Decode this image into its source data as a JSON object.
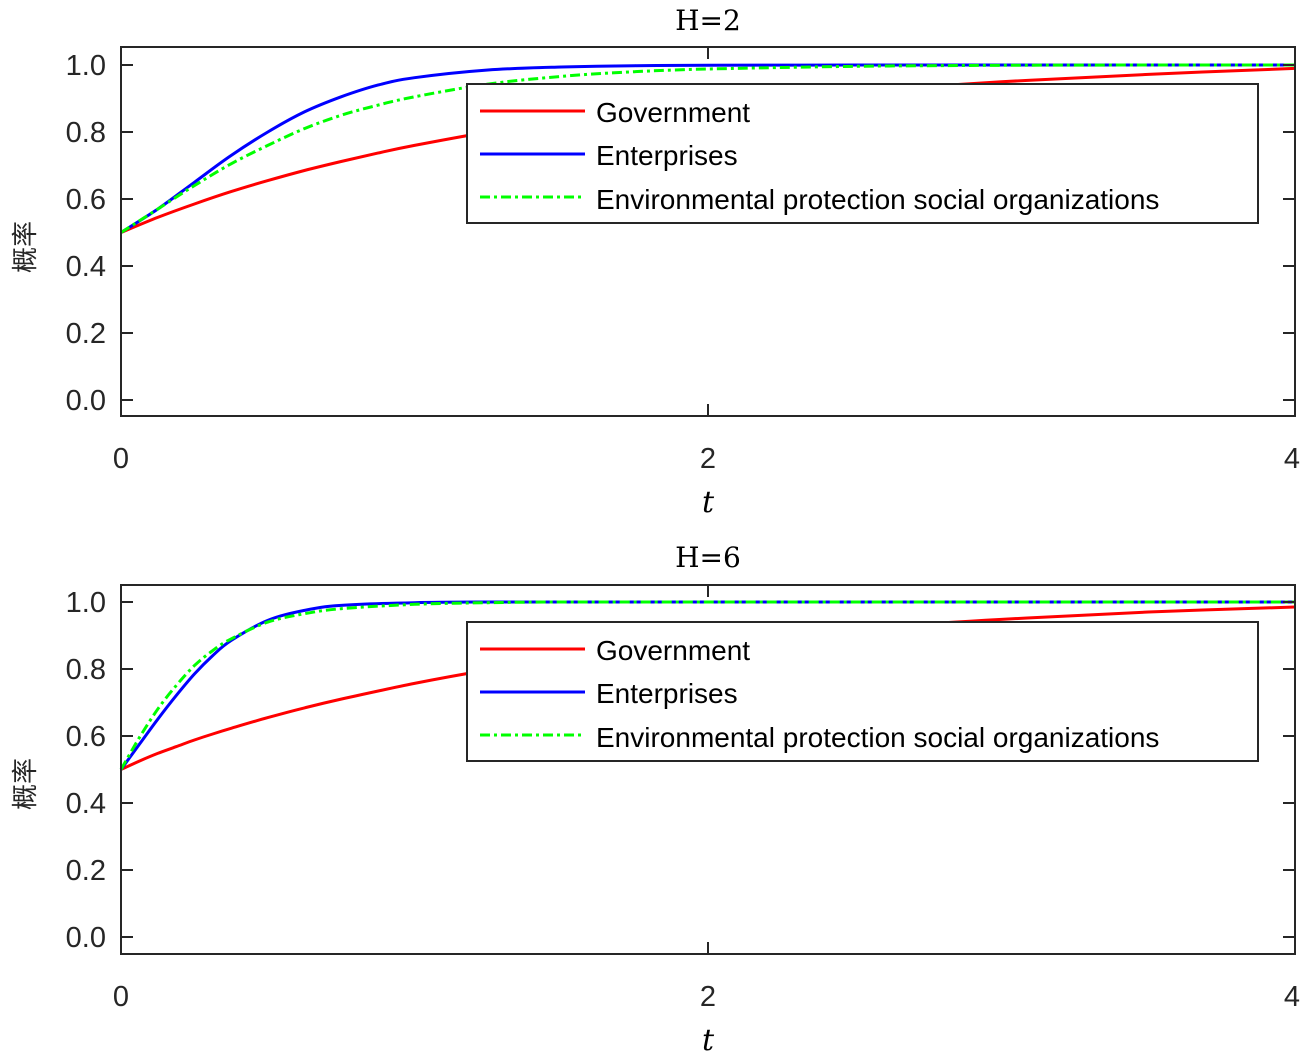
{
  "chart_data": [
    {
      "type": "line",
      "title": "H=2",
      "xlabel": "t",
      "ylabel": "概率",
      "xlim": [
        0,
        4
      ],
      "ylim": [
        -0.05,
        1.05
      ],
      "xticks": [
        "0",
        "2",
        "4"
      ],
      "yticks": [
        "0.0",
        "0.2",
        "0.4",
        "0.6",
        "0.8",
        "1.0"
      ],
      "grid": false,
      "legend_position": "upper right (inside)",
      "x": [
        0,
        0.125,
        0.25,
        0.375,
        0.5,
        0.625,
        0.75,
        0.875,
        1.0,
        1.25,
        1.5,
        1.75,
        2.0,
        2.5,
        3.0,
        3.5,
        4.0
      ],
      "series": [
        {
          "name": "Government",
          "color": "#ff0000",
          "style": "solid",
          "values": [
            0.5,
            0.545,
            0.585,
            0.622,
            0.655,
            0.685,
            0.712,
            0.737,
            0.76,
            0.8,
            0.835,
            0.863,
            0.887,
            0.922,
            0.95,
            0.972,
            0.99
          ]
        },
        {
          "name": "Enterprises",
          "color": "#0000ff",
          "style": "solid",
          "values": [
            0.5,
            0.57,
            0.65,
            0.73,
            0.8,
            0.86,
            0.905,
            0.94,
            0.962,
            0.985,
            0.994,
            0.998,
            0.999,
            1.0,
            1.0,
            1.0,
            1.0
          ]
        },
        {
          "name": "Environmental protection social organizations",
          "color": "#00ff00",
          "style": "dashdot",
          "values": [
            0.5,
            0.57,
            0.64,
            0.705,
            0.76,
            0.81,
            0.85,
            0.88,
            0.905,
            0.943,
            0.966,
            0.98,
            0.988,
            0.996,
            0.999,
            1.0,
            1.0
          ]
        }
      ]
    },
    {
      "type": "line",
      "title": "H=6",
      "xlabel": "t",
      "ylabel": "概率",
      "xlim": [
        0,
        4
      ],
      "ylim": [
        -0.05,
        1.05
      ],
      "xticks": [
        "0",
        "2",
        "4"
      ],
      "yticks": [
        "0.0",
        "0.2",
        "0.4",
        "0.6",
        "0.8",
        "1.0"
      ],
      "grid": false,
      "legend_position": "upper right (inside)",
      "x": [
        0,
        0.0625,
        0.125,
        0.1875,
        0.25,
        0.3125,
        0.375,
        0.5,
        0.625,
        0.75,
        1.0,
        1.25,
        1.5,
        2.0,
        2.5,
        3.0,
        3.5,
        4.0
      ],
      "series": [
        {
          "name": "Government",
          "color": "#ff0000",
          "style": "solid",
          "values": [
            0.5,
            0.525,
            0.548,
            0.568,
            0.588,
            0.606,
            0.623,
            0.655,
            0.684,
            0.71,
            0.757,
            0.797,
            0.83,
            0.882,
            0.92,
            0.948,
            0.97,
            0.985
          ]
        },
        {
          "name": "Enterprises",
          "color": "#0000ff",
          "style": "solid",
          "values": [
            0.5,
            0.575,
            0.65,
            0.72,
            0.785,
            0.84,
            0.885,
            0.945,
            0.975,
            0.99,
            0.998,
            1.0,
            1.0,
            1.0,
            1.0,
            1.0,
            1.0,
            1.0
          ]
        },
        {
          "name": "Environmental protection social organizations",
          "color": "#00ff00",
          "style": "dashdot",
          "values": [
            0.5,
            0.595,
            0.68,
            0.75,
            0.81,
            0.855,
            0.89,
            0.94,
            0.965,
            0.98,
            0.993,
            0.998,
            1.0,
            1.0,
            1.0,
            1.0,
            1.0,
            1.0
          ]
        }
      ]
    }
  ],
  "plots": [
    {
      "title": "H=2",
      "xlabel": "t",
      "ylabel": "概率",
      "xticks": [
        "0",
        "2",
        "4"
      ],
      "yticks": [
        "0.0",
        "0.2",
        "0.4",
        "0.6",
        "0.8",
        "1.0"
      ],
      "legend": [
        "Government",
        "Enterprises",
        "Environmental protection social organizations"
      ]
    },
    {
      "title": "H=6",
      "xlabel": "t",
      "ylabel": "概率",
      "xticks": [
        "0",
        "2",
        "4"
      ],
      "yticks": [
        "0.0",
        "0.2",
        "0.4",
        "0.6",
        "0.8",
        "1.0"
      ],
      "legend": [
        "Government",
        "Enterprises",
        "Environmental protection social organizations"
      ]
    }
  ]
}
